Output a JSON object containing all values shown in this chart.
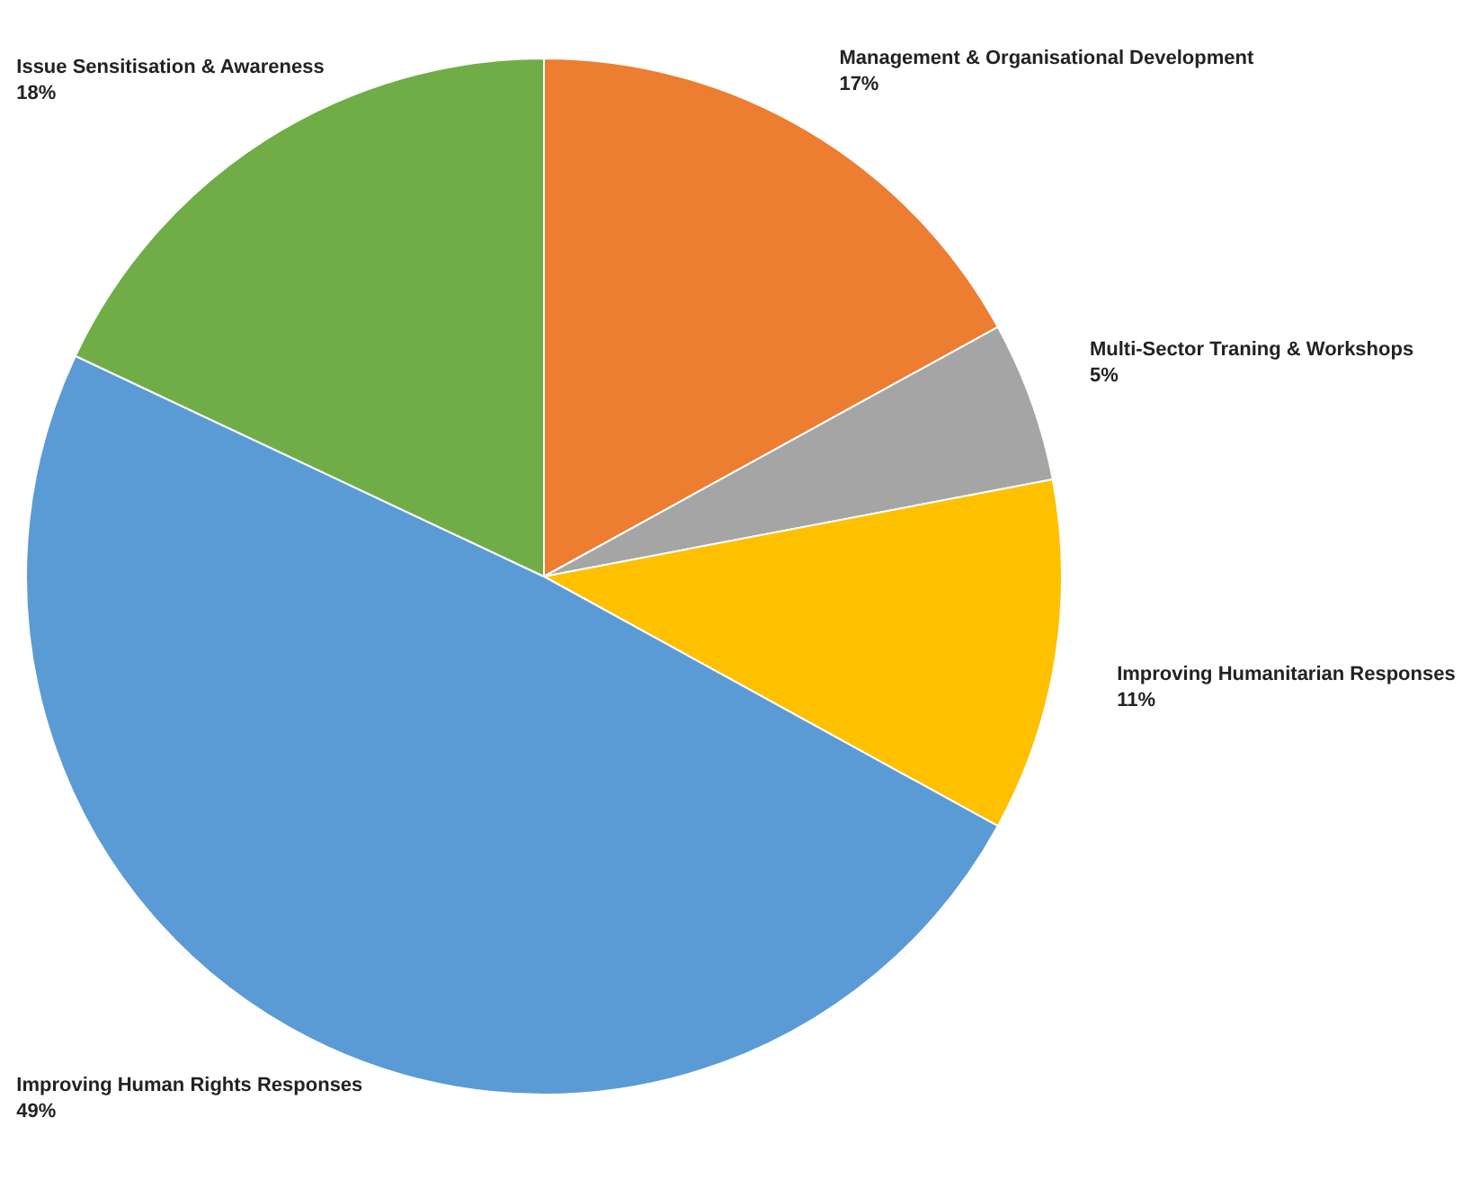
{
  "chart_data": {
    "type": "pie",
    "categories": [
      "Management & Organisational Development",
      "Multi-Sector Traning & Workshops",
      "Improving Humanitarian Responses",
      "Improving Human Rights Responses",
      "Issue Sensitisation & Awareness"
    ],
    "values": [
      17,
      5,
      11,
      49,
      18
    ],
    "colors": [
      "#ed7d31",
      "#a5a5a5",
      "#ffc000",
      "#5b9bd5",
      "#70ad47"
    ],
    "value_labels": [
      "17%",
      "5%",
      "11%",
      "49%",
      "18%"
    ]
  }
}
